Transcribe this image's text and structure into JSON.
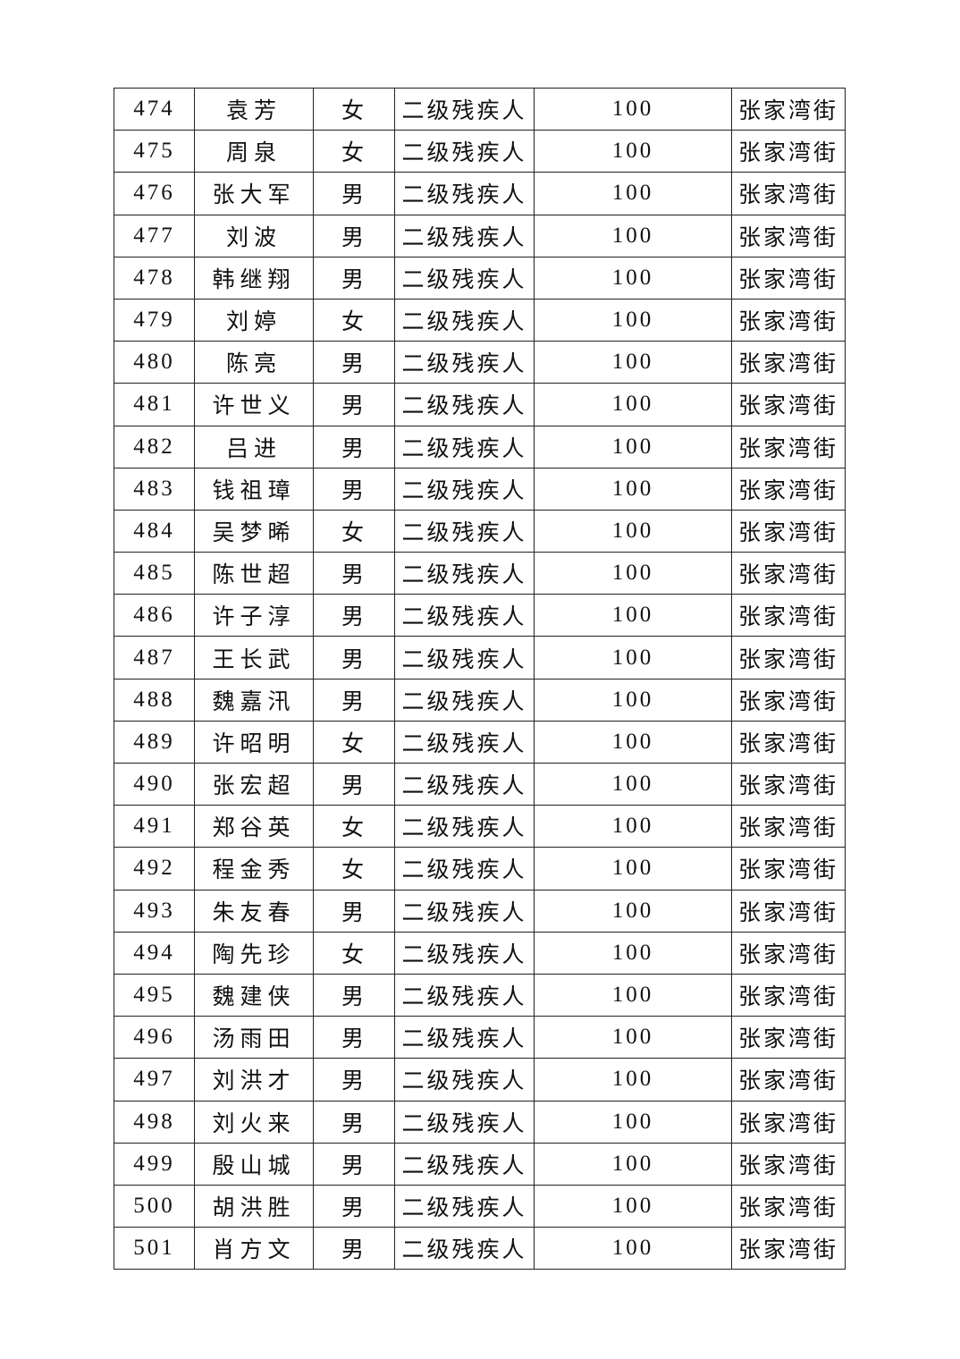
{
  "rows": [
    {
      "no": "474",
      "name": "袁芳",
      "gender": "女",
      "category": "二级残疾人",
      "amount": "100",
      "street": "张家湾街"
    },
    {
      "no": "475",
      "name": "周泉",
      "gender": "女",
      "category": "二级残疾人",
      "amount": "100",
      "street": "张家湾街"
    },
    {
      "no": "476",
      "name": "张大军",
      "gender": "男",
      "category": "二级残疾人",
      "amount": "100",
      "street": "张家湾街"
    },
    {
      "no": "477",
      "name": "刘波",
      "gender": "男",
      "category": "二级残疾人",
      "amount": "100",
      "street": "张家湾街"
    },
    {
      "no": "478",
      "name": "韩继翔",
      "gender": "男",
      "category": "二级残疾人",
      "amount": "100",
      "street": "张家湾街"
    },
    {
      "no": "479",
      "name": "刘婷",
      "gender": "女",
      "category": "二级残疾人",
      "amount": "100",
      "street": "张家湾街"
    },
    {
      "no": "480",
      "name": "陈亮",
      "gender": "男",
      "category": "二级残疾人",
      "amount": "100",
      "street": "张家湾街"
    },
    {
      "no": "481",
      "name": "许世义",
      "gender": "男",
      "category": "二级残疾人",
      "amount": "100",
      "street": "张家湾街"
    },
    {
      "no": "482",
      "name": "吕进",
      "gender": "男",
      "category": "二级残疾人",
      "amount": "100",
      "street": "张家湾街"
    },
    {
      "no": "483",
      "name": "钱祖璋",
      "gender": "男",
      "category": "二级残疾人",
      "amount": "100",
      "street": "张家湾街"
    },
    {
      "no": "484",
      "name": "吴梦晞",
      "gender": "女",
      "category": "二级残疾人",
      "amount": "100",
      "street": "张家湾街"
    },
    {
      "no": "485",
      "name": "陈世超",
      "gender": "男",
      "category": "二级残疾人",
      "amount": "100",
      "street": "张家湾街"
    },
    {
      "no": "486",
      "name": "许子淳",
      "gender": "男",
      "category": "二级残疾人",
      "amount": "100",
      "street": "张家湾街"
    },
    {
      "no": "487",
      "name": "王长武",
      "gender": "男",
      "category": "二级残疾人",
      "amount": "100",
      "street": "张家湾街"
    },
    {
      "no": "488",
      "name": "魏嘉汛",
      "gender": "男",
      "category": "二级残疾人",
      "amount": "100",
      "street": "张家湾街"
    },
    {
      "no": "489",
      "name": "许昭明",
      "gender": "女",
      "category": "二级残疾人",
      "amount": "100",
      "street": "张家湾街"
    },
    {
      "no": "490",
      "name": "张宏超",
      "gender": "男",
      "category": "二级残疾人",
      "amount": "100",
      "street": "张家湾街"
    },
    {
      "no": "491",
      "name": "郑谷英",
      "gender": "女",
      "category": "二级残疾人",
      "amount": "100",
      "street": "张家湾街"
    },
    {
      "no": "492",
      "name": "程金秀",
      "gender": "女",
      "category": "二级残疾人",
      "amount": "100",
      "street": "张家湾街"
    },
    {
      "no": "493",
      "name": "朱友春",
      "gender": "男",
      "category": "二级残疾人",
      "amount": "100",
      "street": "张家湾街"
    },
    {
      "no": "494",
      "name": "陶先珍",
      "gender": "女",
      "category": "二级残疾人",
      "amount": "100",
      "street": "张家湾街"
    },
    {
      "no": "495",
      "name": "魏建侠",
      "gender": "男",
      "category": "二级残疾人",
      "amount": "100",
      "street": "张家湾街"
    },
    {
      "no": "496",
      "name": "汤雨田",
      "gender": "男",
      "category": "二级残疾人",
      "amount": "100",
      "street": "张家湾街"
    },
    {
      "no": "497",
      "name": "刘洪才",
      "gender": "男",
      "category": "二级残疾人",
      "amount": "100",
      "street": "张家湾街"
    },
    {
      "no": "498",
      "name": "刘火来",
      "gender": "男",
      "category": "二级残疾人",
      "amount": "100",
      "street": "张家湾街"
    },
    {
      "no": "499",
      "name": "殷山城",
      "gender": "男",
      "category": "二级残疾人",
      "amount": "100",
      "street": "张家湾街"
    },
    {
      "no": "500",
      "name": "胡洪胜",
      "gender": "男",
      "category": "二级残疾人",
      "amount": "100",
      "street": "张家湾街"
    },
    {
      "no": "501",
      "name": "肖方文",
      "gender": "男",
      "category": "二级残疾人",
      "amount": "100",
      "street": "张家湾街"
    }
  ]
}
